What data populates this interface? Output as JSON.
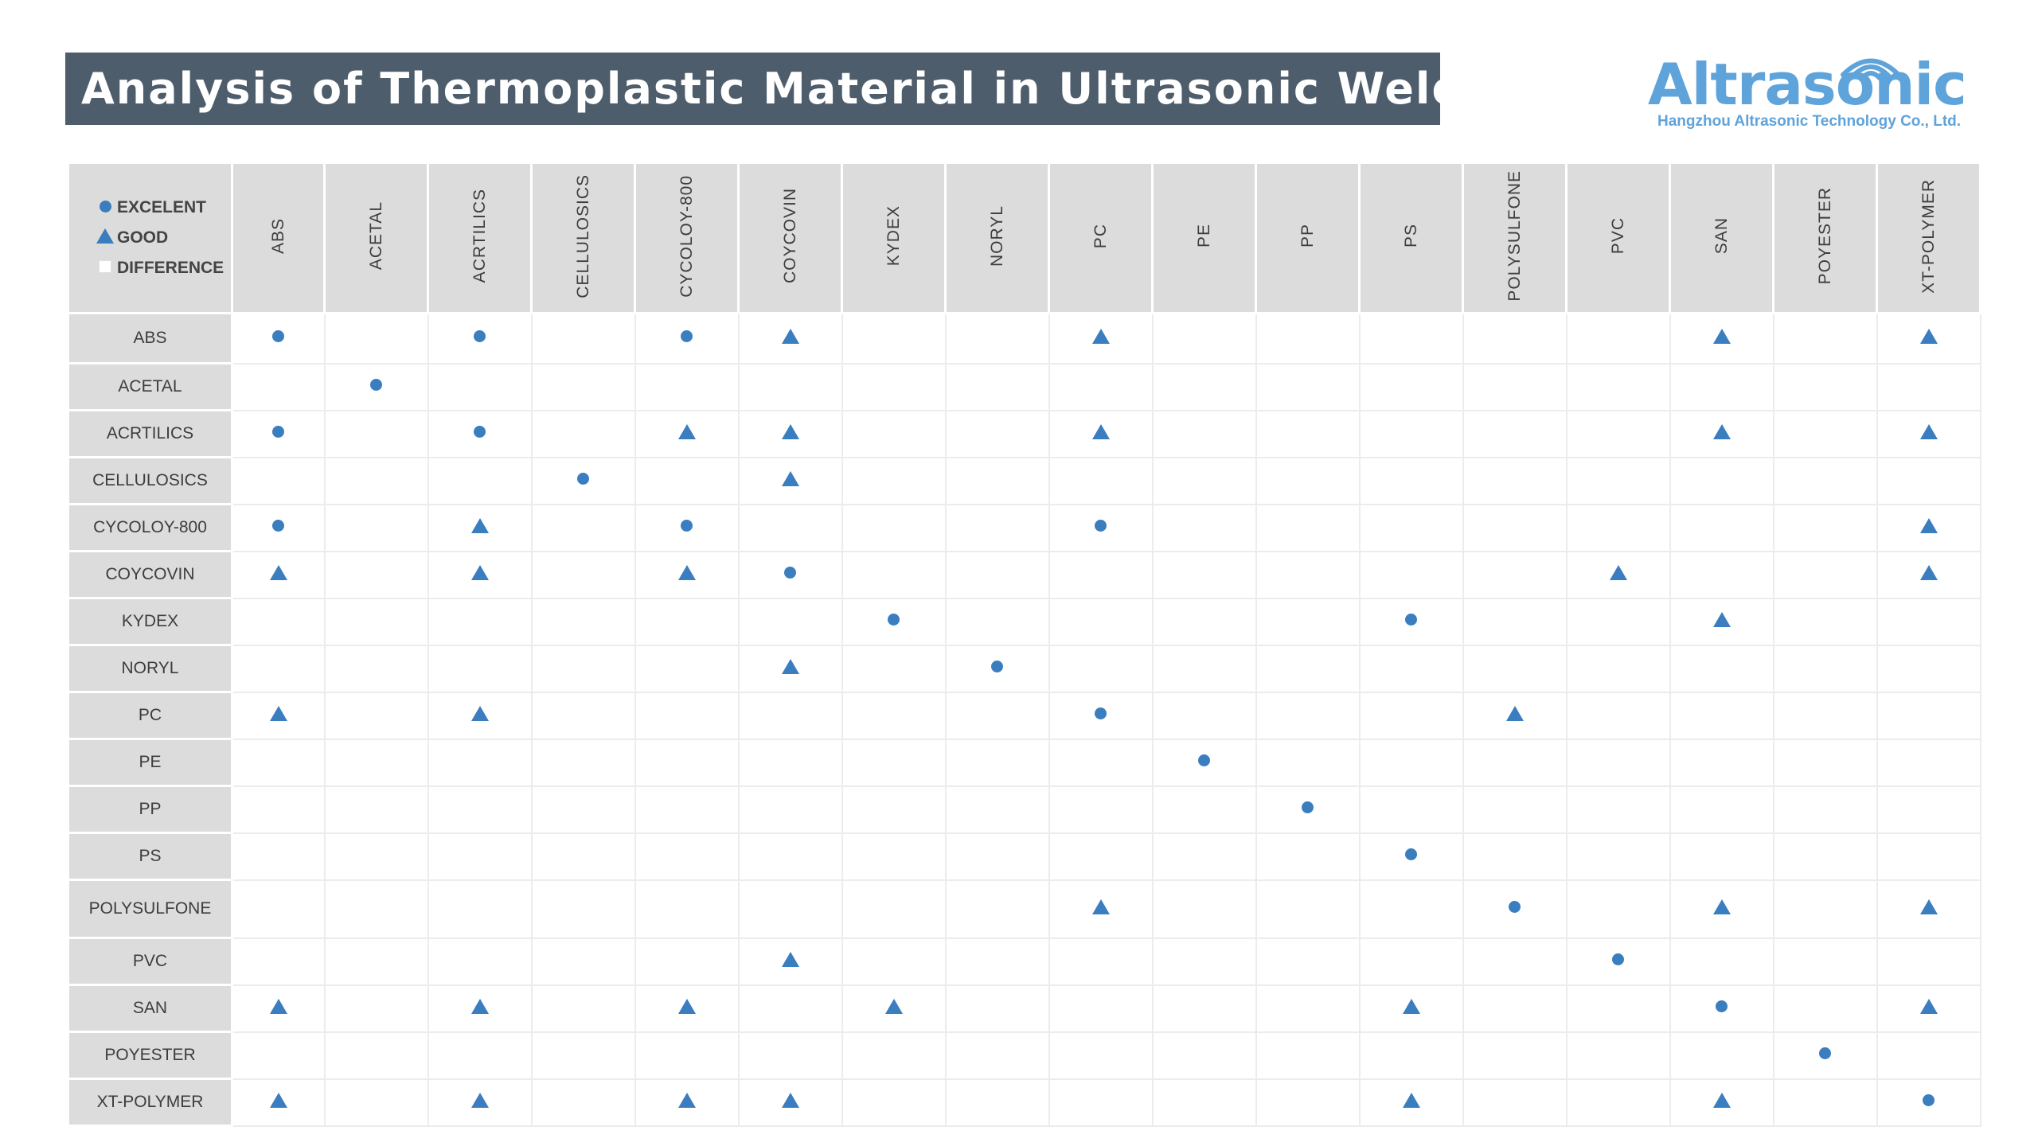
{
  "title": "Analysis of Thermoplastic Material in Ultrasonic Welding",
  "logo": {
    "name": "Altrasonic",
    "subtitle": "Hangzhou Altrasonic Technology Co., Ltd.",
    "color": "#5ea3da"
  },
  "legend": {
    "excellent": "EXCELENT",
    "good": "GOOD",
    "difference": "DIFFERENCE"
  },
  "colors": {
    "header_bg": "#dcdcdc",
    "title_bg": "#4e5d6c",
    "marker": "#3a7ebf"
  },
  "materials": [
    "ABS",
    "ACETAL",
    "ACRTILICS",
    "CELLULOSICS",
    "CYCOLOY-800",
    "COYCOVIN",
    "KYDEX",
    "NORYL",
    "PC",
    "PE",
    "PP",
    "PS",
    "POLYSULFONE",
    "PVC",
    "SAN",
    "POYESTER",
    "XT-POLYMER"
  ],
  "matrix": [
    [
      "E",
      "",
      "E",
      "",
      "E",
      "G",
      "",
      "",
      "G",
      "",
      "",
      "",
      "",
      "",
      "G",
      "",
      "G"
    ],
    [
      "",
      "E",
      "",
      "",
      "",
      "",
      "",
      "",
      "",
      "",
      "",
      "",
      "",
      "",
      "",
      "",
      ""
    ],
    [
      "E",
      "",
      "E",
      "",
      "G",
      "G",
      "",
      "",
      "G",
      "",
      "",
      "",
      "",
      "",
      "G",
      "",
      "G"
    ],
    [
      "",
      "",
      "",
      "E",
      "",
      "G",
      "",
      "",
      "",
      "",
      "",
      "",
      "",
      "",
      "",
      "",
      ""
    ],
    [
      "E",
      "",
      "G",
      "",
      "E",
      "",
      "",
      "",
      "E",
      "",
      "",
      "",
      "",
      "",
      "",
      "",
      "G"
    ],
    [
      "G",
      "",
      "G",
      "",
      "G",
      "E",
      "",
      "",
      "",
      "",
      "",
      "",
      "",
      "G",
      "",
      "",
      "G"
    ],
    [
      "",
      "",
      "",
      "",
      "",
      "",
      "E",
      "",
      "",
      "",
      "",
      "E",
      "",
      "",
      "G",
      "",
      ""
    ],
    [
      "",
      "",
      "",
      "",
      "",
      "G",
      "",
      "E",
      "",
      "",
      "",
      "",
      "",
      "",
      "",
      "",
      ""
    ],
    [
      "G",
      "",
      "G",
      "",
      "",
      "",
      "",
      "",
      "E",
      "",
      "",
      "",
      "G",
      "",
      "",
      "",
      ""
    ],
    [
      "",
      "",
      "",
      "",
      "",
      "",
      "",
      "",
      "",
      "E",
      "",
      "",
      "",
      "",
      "",
      "",
      ""
    ],
    [
      "",
      "",
      "",
      "",
      "",
      "",
      "",
      "",
      "",
      "",
      "E",
      "",
      "",
      "",
      "",
      "",
      ""
    ],
    [
      "",
      "",
      "",
      "",
      "",
      "",
      "",
      "",
      "",
      "",
      "",
      "E",
      "",
      "",
      "",
      "",
      ""
    ],
    [
      "",
      "",
      "",
      "",
      "",
      "",
      "",
      "",
      "G",
      "",
      "",
      "",
      "E",
      "",
      "G",
      "",
      "G"
    ],
    [
      "",
      "",
      "",
      "",
      "",
      "G",
      "",
      "",
      "",
      "",
      "",
      "",
      "",
      "E",
      "",
      "",
      ""
    ],
    [
      "G",
      "",
      "G",
      "",
      "G",
      "",
      "G",
      "",
      "",
      "",
      "",
      "G",
      "",
      "",
      "E",
      "",
      "G"
    ],
    [
      "",
      "",
      "",
      "",
      "",
      "",
      "",
      "",
      "",
      "",
      "",
      "",
      "",
      "",
      "",
      "E",
      ""
    ],
    [
      "G",
      "",
      "G",
      "",
      "G",
      "G",
      "",
      "",
      "",
      "",
      "",
      "G",
      "",
      "",
      "G",
      "",
      "E"
    ]
  ]
}
